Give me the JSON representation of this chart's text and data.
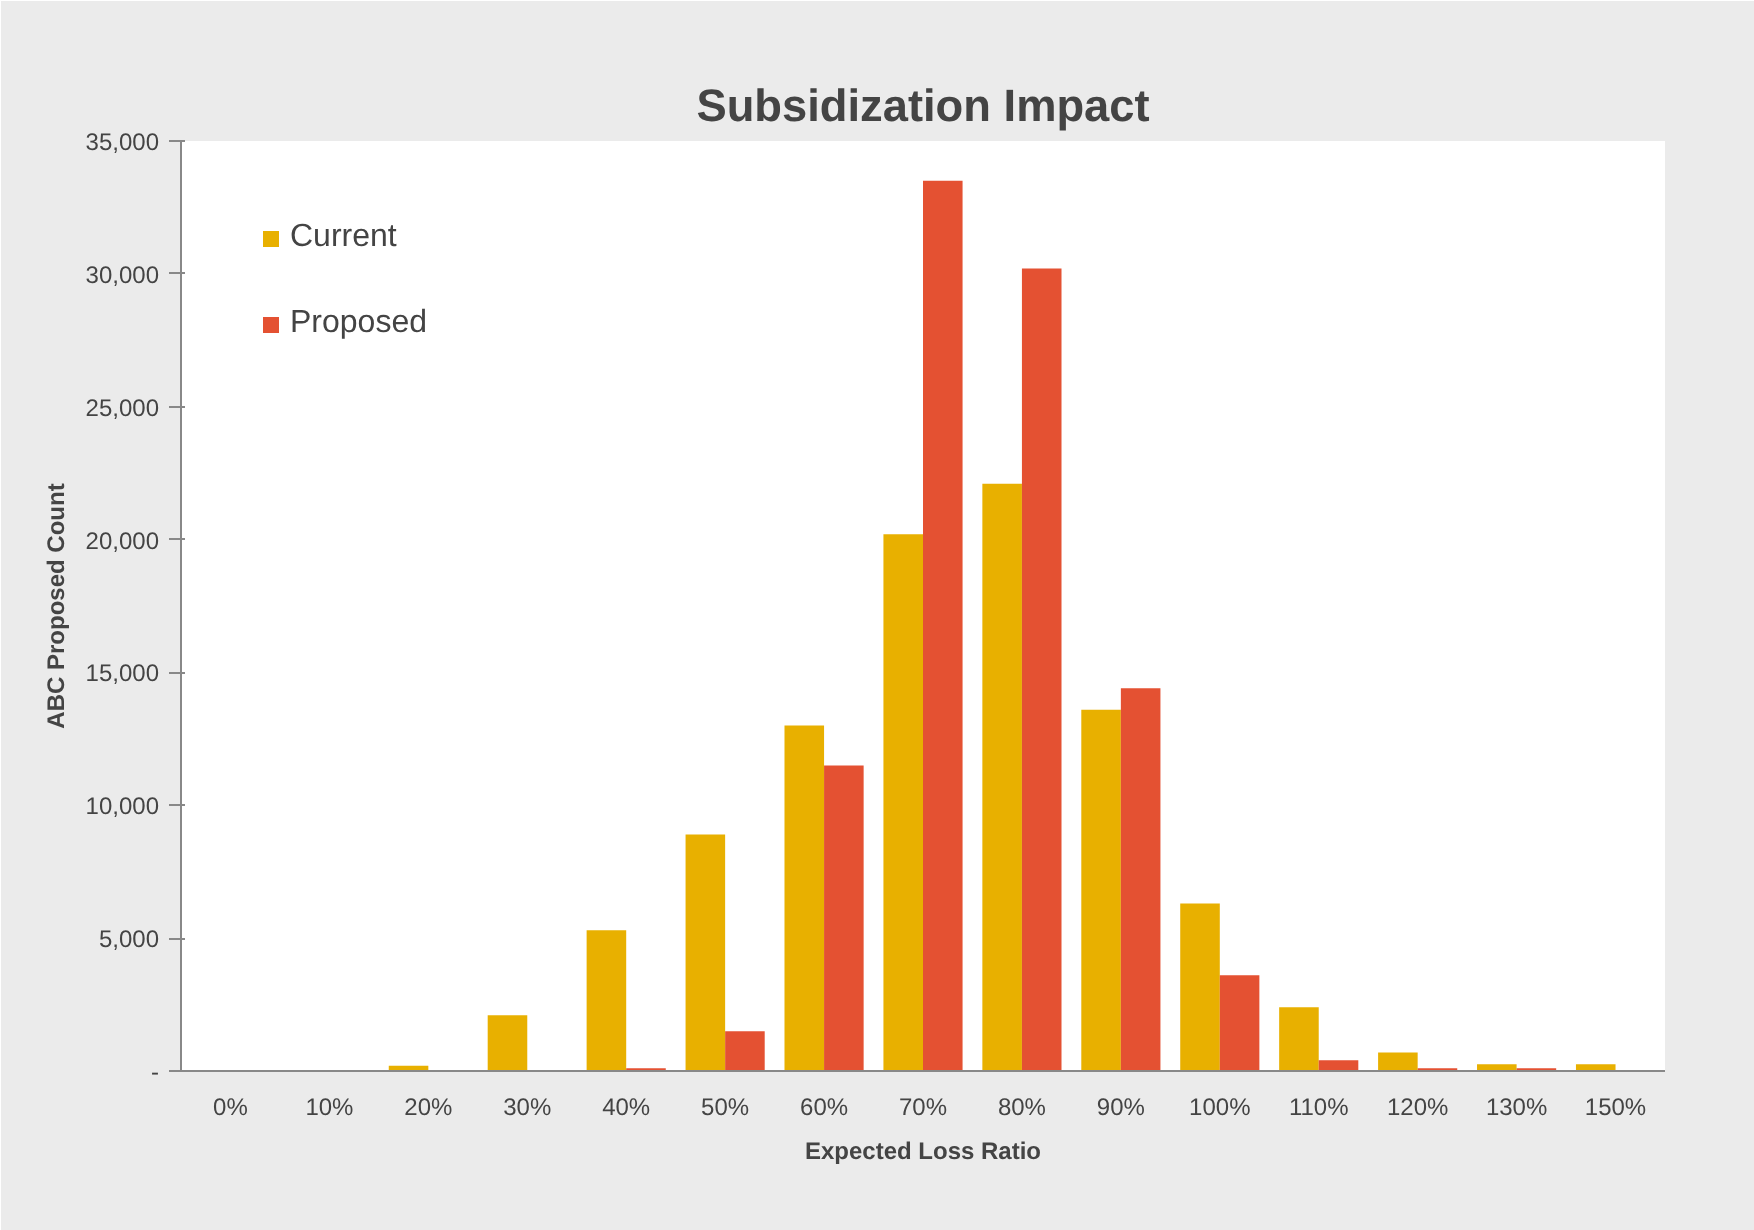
{
  "chart_data": {
    "type": "bar",
    "title": "Subsidization Impact",
    "xlabel": "Expected Loss Ratio",
    "ylabel": "ABC Proposed Count",
    "categories": [
      "0%",
      "10%",
      "20%",
      "30%",
      "40%",
      "50%",
      "60%",
      "70%",
      "80%",
      "90%",
      "100%",
      "110%",
      "120%",
      "130%",
      "150%"
    ],
    "series": [
      {
        "name": "Current",
        "color": "#e8b000",
        "values": [
          0,
          0,
          200,
          2100,
          5300,
          8900,
          13000,
          20200,
          22100,
          13600,
          6300,
          2400,
          700,
          250,
          250
        ]
      },
      {
        "name": "Proposed",
        "color": "#e45132",
        "values": [
          0,
          0,
          0,
          0,
          100,
          1500,
          11500,
          33500,
          30200,
          14400,
          3600,
          400,
          100,
          100,
          0
        ]
      }
    ],
    "ylim": [
      0,
      35000
    ],
    "yticks": [
      {
        "value": 0,
        "label": "-"
      },
      {
        "value": 5000,
        "label": "5,000"
      },
      {
        "value": 10000,
        "label": "10,000"
      },
      {
        "value": 15000,
        "label": "15,000"
      },
      {
        "value": 20000,
        "label": "20,000"
      },
      {
        "value": 25000,
        "label": "25,000"
      },
      {
        "value": 30000,
        "label": "30,000"
      },
      {
        "value": 35000,
        "label": "35,000"
      }
    ],
    "grid": false,
    "legend": "top left"
  }
}
